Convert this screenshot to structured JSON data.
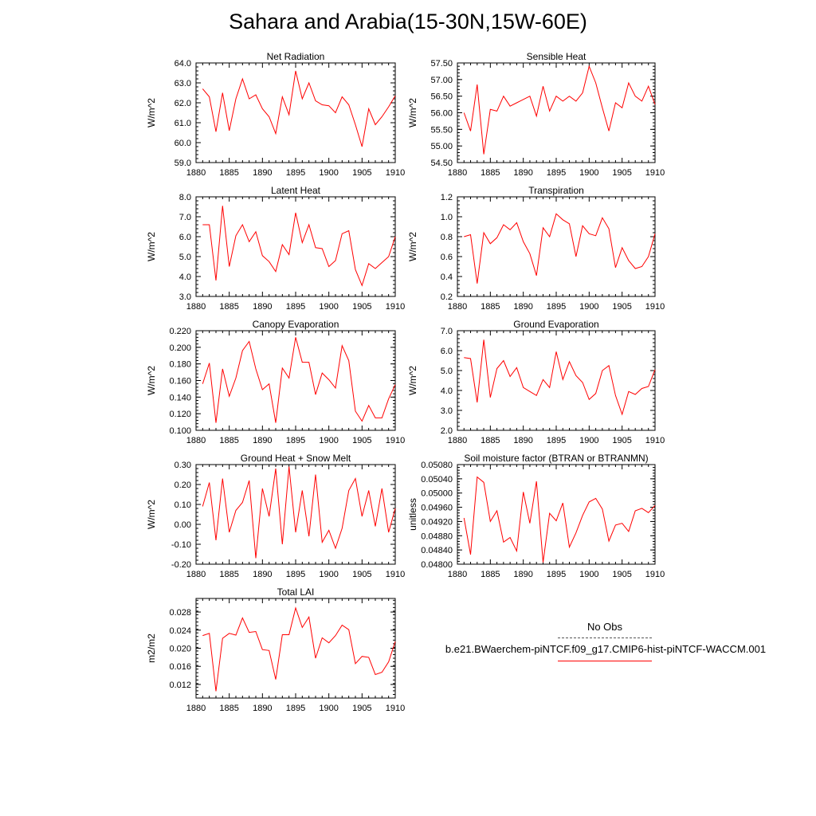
{
  "figure": {
    "title": "Sahara and Arabia(15-30N,15W-60E)",
    "series_color": "#ff0000",
    "legend": {
      "obs_label": "No Obs",
      "case_label": "b.e21.BWaerchem-piNTCF.f09_g17.CMIP6-hist-piNTCF-WACCM.001"
    }
  },
  "chart_data": [
    {
      "type": "line",
      "title": "Net Radiation",
      "ylabel": "W/m^2",
      "xlabel": "",
      "xlim": [
        1880,
        1910
      ],
      "ylim": [
        59.0,
        64.0
      ],
      "xticks": [
        "1880",
        "1885",
        "1890",
        "1895",
        "1900",
        "1905",
        "1910"
      ],
      "yticks": [
        "59.0",
        "60.0",
        "61.0",
        "62.0",
        "63.0",
        "64.0"
      ],
      "x": [
        1881,
        1882,
        1883,
        1884,
        1885,
        1886,
        1887,
        1888,
        1889,
        1890,
        1891,
        1892,
        1893,
        1894,
        1895,
        1896,
        1897,
        1898,
        1899,
        1900,
        1901,
        1902,
        1903,
        1904,
        1905,
        1906,
        1907,
        1908,
        1909,
        1910
      ],
      "values": [
        62.7,
        62.3,
        60.55,
        62.5,
        60.6,
        62.2,
        63.2,
        62.2,
        62.4,
        61.7,
        61.3,
        60.45,
        62.3,
        61.4,
        63.6,
        62.2,
        63.0,
        62.1,
        61.9,
        61.85,
        61.5,
        62.3,
        61.9,
        60.9,
        59.8,
        61.7,
        60.9,
        61.3,
        61.8,
        62.35
      ]
    },
    {
      "type": "line",
      "title": "Sensible Heat",
      "ylabel": "W/m^2",
      "xlabel": "",
      "xlim": [
        1880,
        1910
      ],
      "ylim": [
        54.5,
        57.5
      ],
      "xticks": [
        "1880",
        "1885",
        "1890",
        "1895",
        "1900",
        "1905",
        "1910"
      ],
      "yticks": [
        "54.50",
        "55.00",
        "55.50",
        "56.00",
        "56.50",
        "57.00",
        "57.50"
      ],
      "x": [
        1881,
        1882,
        1883,
        1884,
        1885,
        1886,
        1887,
        1888,
        1889,
        1890,
        1891,
        1892,
        1893,
        1894,
        1895,
        1896,
        1897,
        1898,
        1899,
        1900,
        1901,
        1902,
        1903,
        1904,
        1905,
        1906,
        1907,
        1908,
        1909,
        1910
      ],
      "values": [
        56.0,
        55.45,
        56.85,
        54.75,
        56.1,
        56.05,
        56.5,
        56.2,
        56.3,
        56.4,
        56.5,
        55.9,
        56.8,
        56.05,
        56.5,
        56.35,
        56.5,
        56.35,
        56.6,
        57.4,
        56.9,
        56.15,
        55.45,
        56.3,
        56.15,
        56.9,
        56.5,
        56.35,
        56.8,
        56.25
      ]
    },
    {
      "type": "line",
      "title": "Latent Heat",
      "ylabel": "W/m^2",
      "xlabel": "",
      "xlim": [
        1880,
        1910
      ],
      "ylim": [
        3.0,
        8.0
      ],
      "xticks": [
        "1880",
        "1885",
        "1890",
        "1895",
        "1900",
        "1905",
        "1910"
      ],
      "yticks": [
        "3.0",
        "4.0",
        "5.0",
        "6.0",
        "7.0",
        "8.0"
      ],
      "x": [
        1881,
        1882,
        1883,
        1884,
        1885,
        1886,
        1887,
        1888,
        1889,
        1890,
        1891,
        1892,
        1893,
        1894,
        1895,
        1896,
        1897,
        1898,
        1899,
        1900,
        1901,
        1902,
        1903,
        1904,
        1905,
        1906,
        1907,
        1908,
        1909,
        1910
      ],
      "values": [
        6.6,
        6.6,
        3.8,
        7.55,
        4.5,
        6.05,
        6.6,
        5.75,
        6.25,
        5.05,
        4.75,
        4.25,
        5.6,
        5.1,
        7.2,
        5.7,
        6.6,
        5.45,
        5.4,
        4.5,
        4.8,
        6.15,
        6.3,
        4.35,
        3.55,
        4.65,
        4.4,
        4.7,
        5.0,
        6.0
      ]
    },
    {
      "type": "line",
      "title": "Transpiration",
      "ylabel": "W/m^2",
      "xlabel": "",
      "xlim": [
        1880,
        1910
      ],
      "ylim": [
        0.2,
        1.2
      ],
      "xticks": [
        "1880",
        "1885",
        "1890",
        "1895",
        "1900",
        "1905",
        "1910"
      ],
      "yticks": [
        "0.2",
        "0.4",
        "0.6",
        "0.8",
        "1.0",
        "1.2"
      ],
      "x": [
        1881,
        1882,
        1883,
        1884,
        1885,
        1886,
        1887,
        1888,
        1889,
        1890,
        1891,
        1892,
        1893,
        1894,
        1895,
        1896,
        1897,
        1898,
        1899,
        1900,
        1901,
        1902,
        1903,
        1904,
        1905,
        1906,
        1907,
        1908,
        1909,
        1910
      ],
      "values": [
        0.8,
        0.82,
        0.33,
        0.84,
        0.73,
        0.79,
        0.92,
        0.87,
        0.94,
        0.75,
        0.63,
        0.41,
        0.89,
        0.8,
        1.03,
        0.97,
        0.93,
        0.6,
        0.91,
        0.83,
        0.81,
        0.99,
        0.88,
        0.49,
        0.69,
        0.56,
        0.48,
        0.5,
        0.6,
        0.83
      ]
    },
    {
      "type": "line",
      "title": "Canopy Evaporation",
      "ylabel": "W/m^2",
      "xlabel": "",
      "xlim": [
        1880,
        1910
      ],
      "ylim": [
        0.1,
        0.22
      ],
      "xticks": [
        "1880",
        "1885",
        "1890",
        "1895",
        "1900",
        "1905",
        "1910"
      ],
      "yticks": [
        "0.100",
        "0.120",
        "0.140",
        "0.160",
        "0.180",
        "0.200",
        "0.220"
      ],
      "x": [
        1881,
        1882,
        1883,
        1884,
        1885,
        1886,
        1887,
        1888,
        1889,
        1890,
        1891,
        1892,
        1893,
        1894,
        1895,
        1896,
        1897,
        1898,
        1899,
        1900,
        1901,
        1902,
        1903,
        1904,
        1905,
        1906,
        1907,
        1908,
        1909,
        1910
      ],
      "values": [
        0.156,
        0.181,
        0.109,
        0.174,
        0.141,
        0.163,
        0.196,
        0.207,
        0.174,
        0.149,
        0.156,
        0.109,
        0.175,
        0.163,
        0.212,
        0.182,
        0.182,
        0.143,
        0.169,
        0.161,
        0.151,
        0.202,
        0.184,
        0.123,
        0.111,
        0.13,
        0.115,
        0.115,
        0.138,
        0.155
      ]
    },
    {
      "type": "line",
      "title": "Ground Evaporation",
      "ylabel": "W/m^2",
      "xlabel": "",
      "xlim": [
        1880,
        1910
      ],
      "ylim": [
        2.0,
        7.0
      ],
      "xticks": [
        "1880",
        "1885",
        "1890",
        "1895",
        "1900",
        "1905",
        "1910"
      ],
      "yticks": [
        "2.0",
        "3.0",
        "4.0",
        "5.0",
        "6.0",
        "7.0"
      ],
      "x": [
        1881,
        1882,
        1883,
        1884,
        1885,
        1886,
        1887,
        1888,
        1889,
        1890,
        1891,
        1892,
        1893,
        1894,
        1895,
        1896,
        1897,
        1898,
        1899,
        1900,
        1901,
        1902,
        1903,
        1904,
        1905,
        1906,
        1907,
        1908,
        1909,
        1910
      ],
      "values": [
        5.65,
        5.6,
        3.4,
        6.55,
        3.65,
        5.1,
        5.5,
        4.7,
        5.15,
        4.15,
        3.95,
        3.75,
        4.55,
        4.15,
        5.95,
        4.55,
        5.45,
        4.75,
        4.4,
        3.55,
        3.85,
        5.0,
        5.25,
        3.75,
        2.8,
        3.95,
        3.8,
        4.1,
        4.2,
        5.05
      ]
    },
    {
      "type": "line",
      "title": "Ground Heat + Snow Melt",
      "ylabel": "W/m^2",
      "xlabel": "",
      "xlim": [
        1880,
        1910
      ],
      "ylim": [
        -0.2,
        0.3
      ],
      "xticks": [
        "1880",
        "1885",
        "1890",
        "1895",
        "1900",
        "1905",
        "1910"
      ],
      "yticks": [
        "-0.20",
        "-0.10",
        "0.00",
        "0.10",
        "0.20",
        "0.30"
      ],
      "x": [
        1881,
        1882,
        1883,
        1884,
        1885,
        1886,
        1887,
        1888,
        1889,
        1890,
        1891,
        1892,
        1893,
        1894,
        1895,
        1896,
        1897,
        1898,
        1899,
        1900,
        1901,
        1902,
        1903,
        1904,
        1905,
        1906,
        1907,
        1908,
        1909,
        1910
      ],
      "values": [
        0.09,
        0.21,
        -0.08,
        0.23,
        -0.04,
        0.07,
        0.11,
        0.22,
        -0.17,
        0.18,
        0.04,
        0.28,
        -0.1,
        0.29,
        -0.04,
        0.17,
        -0.06,
        0.25,
        -0.09,
        -0.03,
        -0.12,
        -0.02,
        0.17,
        0.23,
        0.04,
        0.17,
        -0.01,
        0.18,
        -0.04,
        0.08
      ]
    },
    {
      "type": "line",
      "title": "Soil moisture factor (BTRAN or BTRANMN)",
      "ylabel": "unitless",
      "xlabel": "",
      "xlim": [
        1880,
        1910
      ],
      "ylim": [
        0.048,
        0.0508
      ],
      "xticks": [
        "1880",
        "1885",
        "1890",
        "1895",
        "1900",
        "1905",
        "1910"
      ],
      "yticks": [
        "0.04800",
        "0.04840",
        "0.04880",
        "0.04920",
        "0.04960",
        "0.05000",
        "0.05040",
        "0.05080"
      ],
      "x": [
        1881,
        1882,
        1883,
        1884,
        1885,
        1886,
        1887,
        1888,
        1889,
        1890,
        1891,
        1892,
        1893,
        1894,
        1895,
        1896,
        1897,
        1898,
        1899,
        1900,
        1901,
        1902,
        1903,
        1904,
        1905,
        1906,
        1907,
        1908,
        1909,
        1910
      ],
      "values": [
        0.0493,
        0.04827,
        0.05045,
        0.0503,
        0.0492,
        0.0495,
        0.04862,
        0.04875,
        0.04837,
        0.05003,
        0.04915,
        0.05033,
        0.04805,
        0.04943,
        0.04922,
        0.04972,
        0.04848,
        0.04888,
        0.04937,
        0.04975,
        0.04985,
        0.04955,
        0.04865,
        0.0491,
        0.04915,
        0.04892,
        0.0495,
        0.04957,
        0.04945,
        0.04965
      ]
    },
    {
      "type": "line",
      "title": "Total LAI",
      "ylabel": "m2/m2",
      "xlabel": "",
      "xlim": [
        1880,
        1910
      ],
      "ylim": [
        0.009,
        0.031
      ],
      "xticks": [
        "1880",
        "1885",
        "1890",
        "1895",
        "1900",
        "1905",
        "1910"
      ],
      "yticks": [
        "0.012",
        "0.016",
        "0.020",
        "0.024",
        "0.028"
      ],
      "x": [
        1881,
        1882,
        1883,
        1884,
        1885,
        1886,
        1887,
        1888,
        1889,
        1890,
        1891,
        1892,
        1893,
        1894,
        1895,
        1896,
        1897,
        1898,
        1899,
        1900,
        1901,
        1902,
        1903,
        1904,
        1905,
        1906,
        1907,
        1908,
        1909,
        1910
      ],
      "values": [
        0.0228,
        0.0233,
        0.0105,
        0.0222,
        0.0233,
        0.0229,
        0.0267,
        0.0235,
        0.0237,
        0.0197,
        0.0195,
        0.0131,
        0.023,
        0.023,
        0.0289,
        0.0246,
        0.0269,
        0.0178,
        0.0223,
        0.0212,
        0.0228,
        0.0251,
        0.0241,
        0.0166,
        0.0182,
        0.018,
        0.0142,
        0.0147,
        0.017,
        0.0215
      ]
    }
  ]
}
